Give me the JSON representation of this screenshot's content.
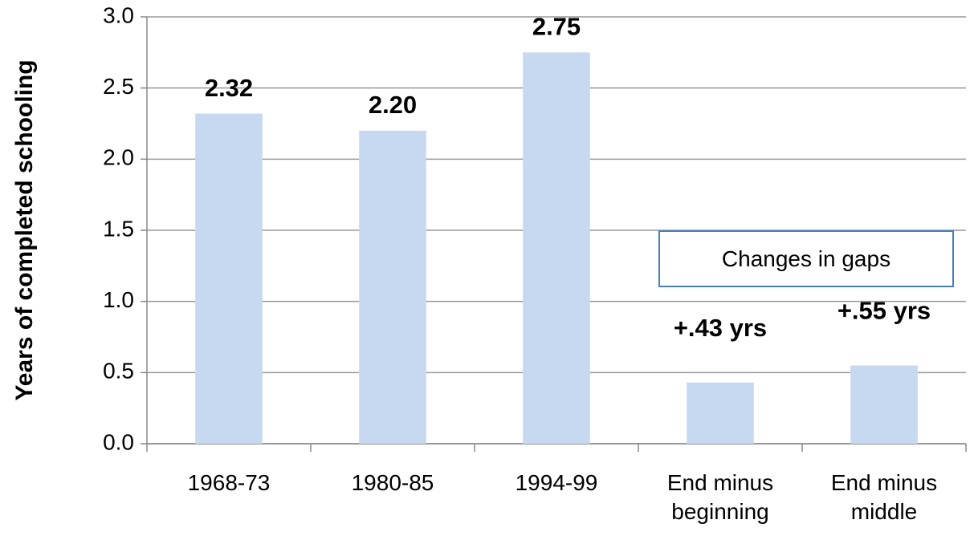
{
  "chart_data": {
    "type": "bar",
    "y_label": "Years of completed schooling",
    "categories": [
      "1968-73",
      "1980-85",
      "1994-99",
      "End minus beginning",
      "End minus middle"
    ],
    "values": [
      2.32,
      2.2,
      2.75,
      0.43,
      0.55
    ],
    "value_labels": [
      "2.32",
      "2.20",
      "2.75",
      "+.43 yrs",
      "+.55 yrs"
    ],
    "annotation": "Changes in gaps",
    "color": "#c6d9f1",
    "ylim": [
      0,
      3
    ],
    "yticks": [
      {
        "value": 0,
        "label": "0.0"
      },
      0.5,
      {
        "value": 1,
        "label": "1.0"
      },
      1.5,
      {
        "value": 2,
        "label": "2.0"
      },
      2.5,
      {
        "value": 3,
        "label": "3.0"
      }
    ],
    "grid": true
  }
}
